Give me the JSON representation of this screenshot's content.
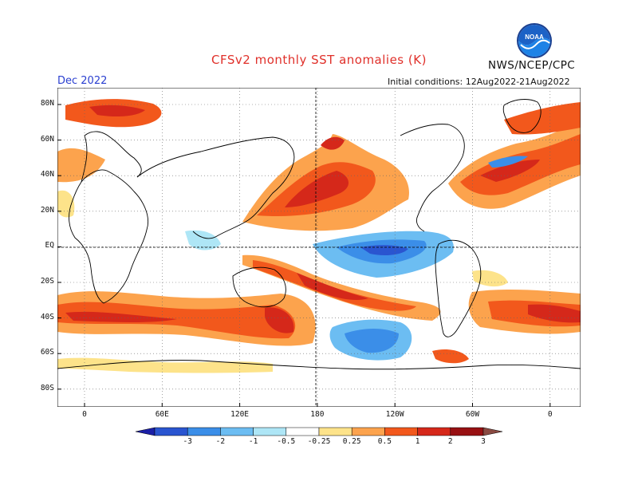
{
  "header": {
    "title": "CFSv2 monthly SST anomalies (K)",
    "month": "Dec 2022",
    "agency": "NWS/NCEP/CPC",
    "initial_conditions": "Initial conditions: 12Aug2022-21Aug2022",
    "logo_text": "NOAA"
  },
  "axes": {
    "lat_labels": [
      "80N",
      "60N",
      "40N",
      "20N",
      "EQ",
      "20S",
      "40S",
      "60S",
      "80S"
    ],
    "lon_labels": [
      "0",
      "60E",
      "120E",
      "180",
      "120W",
      "60W",
      "0"
    ]
  },
  "colorbar": {
    "labels": [
      "-3",
      "-2",
      "-1",
      "-0.5",
      "-0.25",
      "0.25",
      "0.5",
      "1",
      "2",
      "3"
    ],
    "colors": [
      "#1b1fa6",
      "#2a55d0",
      "#3b8ee8",
      "#6cbdf2",
      "#aee6f6",
      "#ffffff",
      "#fde38a",
      "#fca34d",
      "#f2581c",
      "#d5281a",
      "#981012",
      "#8a4a42"
    ]
  },
  "map": {
    "ocean_color": "#ffffff",
    "land_color": "#ffffff",
    "coast_color": "#000000",
    "grid_style": "dotted",
    "dashed_lines": [
      "Equator",
      "180"
    ]
  }
}
